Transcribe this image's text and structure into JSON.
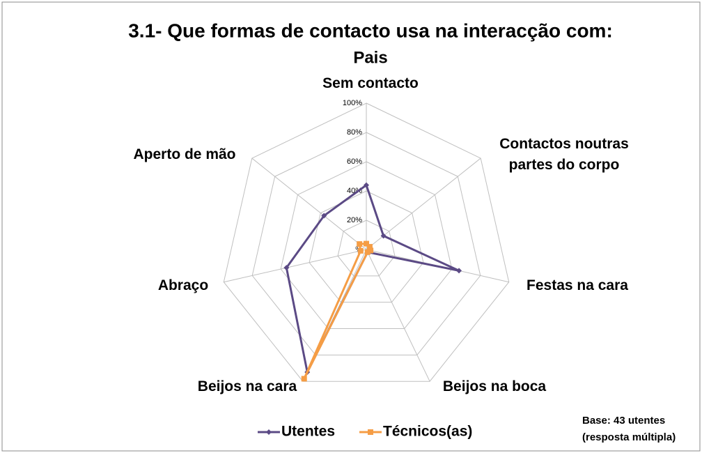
{
  "chart_data": {
    "type": "radar",
    "title": "3.1- Que formas de contacto usa na interacção com:",
    "subtitle": "Pais",
    "categories": [
      "Sem contacto",
      "Contactos noutras partes do corpo",
      "Festas na cara",
      "Beijos na boca",
      "Beijos na cara",
      "Abraço",
      "Aperto de mão"
    ],
    "series": [
      {
        "name": "Utentes",
        "color": "#5b4a85",
        "values": [
          44,
          15,
          65,
          2,
          93,
          56,
          37
        ]
      },
      {
        "name": "Técnicos(as)",
        "color": "#f59d45",
        "values": [
          4,
          3,
          3,
          2,
          98,
          4,
          6
        ]
      }
    ],
    "rlim": [
      0,
      100
    ],
    "rticks": [
      {
        "value": 0,
        "label": "%"
      },
      {
        "value": 20,
        "label": "20%"
      },
      {
        "value": 40,
        "label": "40%"
      },
      {
        "value": 60,
        "label": "60%"
      },
      {
        "value": 80,
        "label": "80%"
      },
      {
        "value": 100,
        "label": "100%"
      }
    ],
    "grid": true,
    "legend": "bottom",
    "note": [
      "Base: 43 utentes",
      "(resposta múltipla)"
    ]
  }
}
